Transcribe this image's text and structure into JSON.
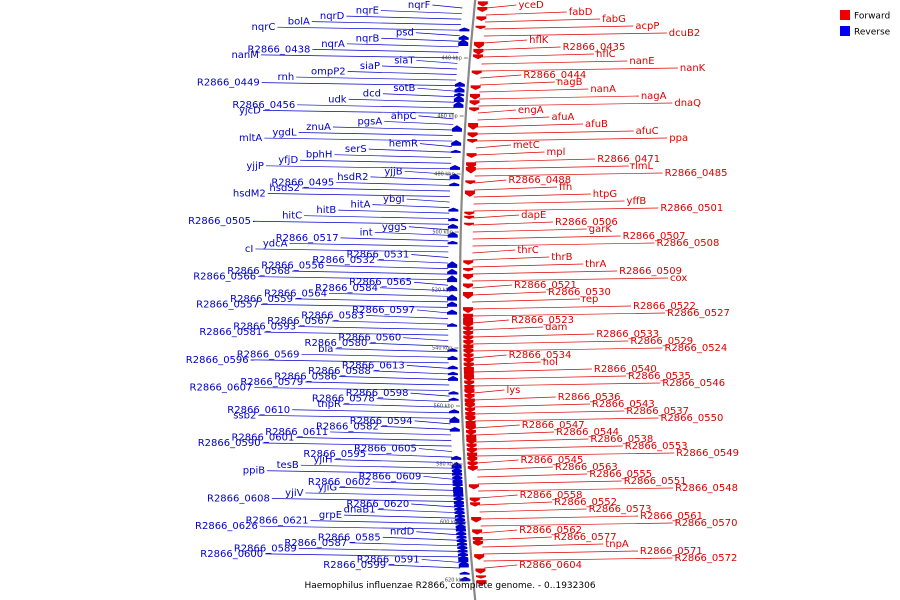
{
  "caption": "Haemophilus influenzae R2866, complete genome. - 0..1932306",
  "legend": [
    {
      "label": "Forward",
      "color": "#ee0000"
    },
    {
      "label": "Reverse",
      "color": "#0000ee"
    }
  ],
  "colors": {
    "forward": "#dd0000",
    "reverse": "#0000cc",
    "backbone": "#888888"
  },
  "ticks": [
    "440 kbp",
    "460 kbp",
    "480 kbp",
    "500 kbp",
    "520 kbp",
    "540 kbp",
    "560 kbp",
    "580 kbp",
    "600 kbp",
    "620 kbp"
  ],
  "forward_labels": [
    "yceD",
    "fabD",
    "fabG",
    "acpP",
    "dcuB2",
    "hflK",
    "R2866_0435",
    "hflC",
    "nanE",
    "nanK",
    "R2866_0444",
    "nagB",
    "nanA",
    "nagA",
    "dnaQ",
    "engA",
    "afuA",
    "afuB",
    "afuC",
    "ppa",
    "metC",
    "mpl",
    "R2866_0471",
    "rlmL",
    "R2866_0485",
    "R2866_0488",
    "ffh",
    "htpG",
    "yffB",
    "R2866_0501",
    "dapE",
    "R2866_0506",
    "garK",
    "R2866_0507",
    "R2866_0508",
    "thrC",
    "thrB",
    "thrA",
    "R2866_0509",
    "cox",
    "R2866_0521",
    "R2866_0530",
    "rep",
    "R2866_0522",
    "R2866_0527",
    "R2866_0523",
    "dam",
    "R2866_0533",
    "R2866_0529",
    "R2866_0524",
    "R2866_0534",
    "hol",
    "R2866_0540",
    "R2866_0535",
    "R2866_0546",
    "lys",
    "R2866_0536",
    "R2866_0543",
    "R2866_0537",
    "R2866_0550",
    "R2866_0547",
    "R2866_0544",
    "R2866_0538",
    "R2866_0553",
    "R2866_0549",
    "R2866_0545",
    "R2866_0563",
    "R2866_0555",
    "R2866_0551",
    "R2866_0548",
    "R2866_0558",
    "R2866_0552",
    "R2866_0573",
    "R2866_0561",
    "R2866_0570",
    "R2866_0562",
    "R2866_0577",
    "tnpA",
    "R2866_0571",
    "R2866_0572",
    "R2866_0604"
  ],
  "reverse_labels": [
    "nqrF",
    "nqrE",
    "nqrD",
    "bolA",
    "nqrC",
    "psd",
    "nqrB",
    "nqrA",
    "R2866_0438",
    "nanM",
    "siaT",
    "siaP",
    "ompP2",
    "rnh",
    "R2866_0449",
    "sotB",
    "dcd",
    "udk",
    "R2866_0456",
    "yjcD",
    "ahpC",
    "pgsA",
    "znuA",
    "ygdL",
    "mltA",
    "hemR",
    "serS",
    "bphH",
    "yfjD",
    "yjjP",
    "yjjB",
    "hsdR2",
    "R2866_0495",
    "hsdS2",
    "hsdM2",
    "ybgI",
    "hitA",
    "hitB",
    "hitC",
    "R2866_0505",
    "yggS",
    "int",
    "R2866_0517",
    "ydcA",
    "cI",
    "R2866_0531",
    "R2866_0532",
    "R2866_0556",
    "R2866_0568",
    "R2866_0566",
    "R2866_0565",
    "R2866_0584",
    "R2866_0564",
    "R2866_0559",
    "R2866_0557",
    "R2866_0597",
    "R2866_0583",
    "R2866_0567",
    "R2866_0593",
    "R2866_0581",
    "R2866_0560",
    "R2866_0580",
    "bla",
    "R2866_0569",
    "R2866_0596",
    "R2866_0613",
    "R2866_0588",
    "R2866_0586",
    "R2866_0579",
    "R2866_0607",
    "R2866_0598",
    "R2866_0578",
    "tnpR",
    "R2866_0610",
    "ssb2",
    "R2866_0594",
    "R2866_0582",
    "R2866_0611",
    "R2866_0601",
    "R2866_0590",
    "R2866_0605",
    "R2866_0595",
    "yjiH",
    "tesB",
    "ppiB",
    "R2866_0609",
    "R2866_0602",
    "yjiG",
    "yjiV",
    "R2866_0608",
    "R2866_0620",
    "dnaB1",
    "grpE",
    "R2866_0621",
    "R2866_0626",
    "nrdD",
    "R2866_0585",
    "R2866_0587",
    "R2866_0589",
    "R2866_0600",
    "R2866_0591",
    "R2866_0599"
  ]
}
